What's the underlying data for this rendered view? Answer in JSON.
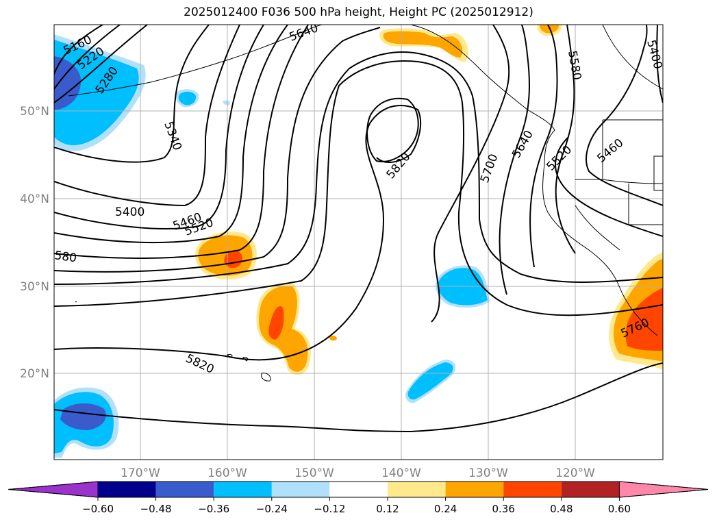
{
  "title": "2025012400 F036 500 hPa height, Height PC (2025012912)",
  "map": {
    "lat_ticks": [
      "50°N",
      "40°N",
      "30°N",
      "20°N"
    ],
    "lon_ticks": [
      "170°W",
      "160°W",
      "150°W",
      "140°W",
      "130°W",
      "120°W"
    ],
    "grid": true,
    "tick_color": "#7f7f7f"
  },
  "contour_labels": [
    "5160",
    "5220",
    "5280",
    "5340",
    "5400",
    "5460",
    "5520",
    "580",
    "5640",
    "5820",
    "5700",
    "5640",
    "5520",
    "5460",
    "5580",
    "5400",
    "5760",
    "5820"
  ],
  "colorbar": {
    "ticks": [
      "−0.60",
      "−0.48",
      "−0.36",
      "−0.24",
      "−0.12",
      "0.12",
      "0.24",
      "0.36",
      "0.48",
      "0.60"
    ],
    "colors": [
      "#9933cc",
      "#00008b",
      "#3a5bcc",
      "#00bfff",
      "#b0e0fa",
      "#ffffff",
      "#ffe98c",
      "#ffa500",
      "#ff4500",
      "#b22222",
      "#ff88aa"
    ]
  }
}
